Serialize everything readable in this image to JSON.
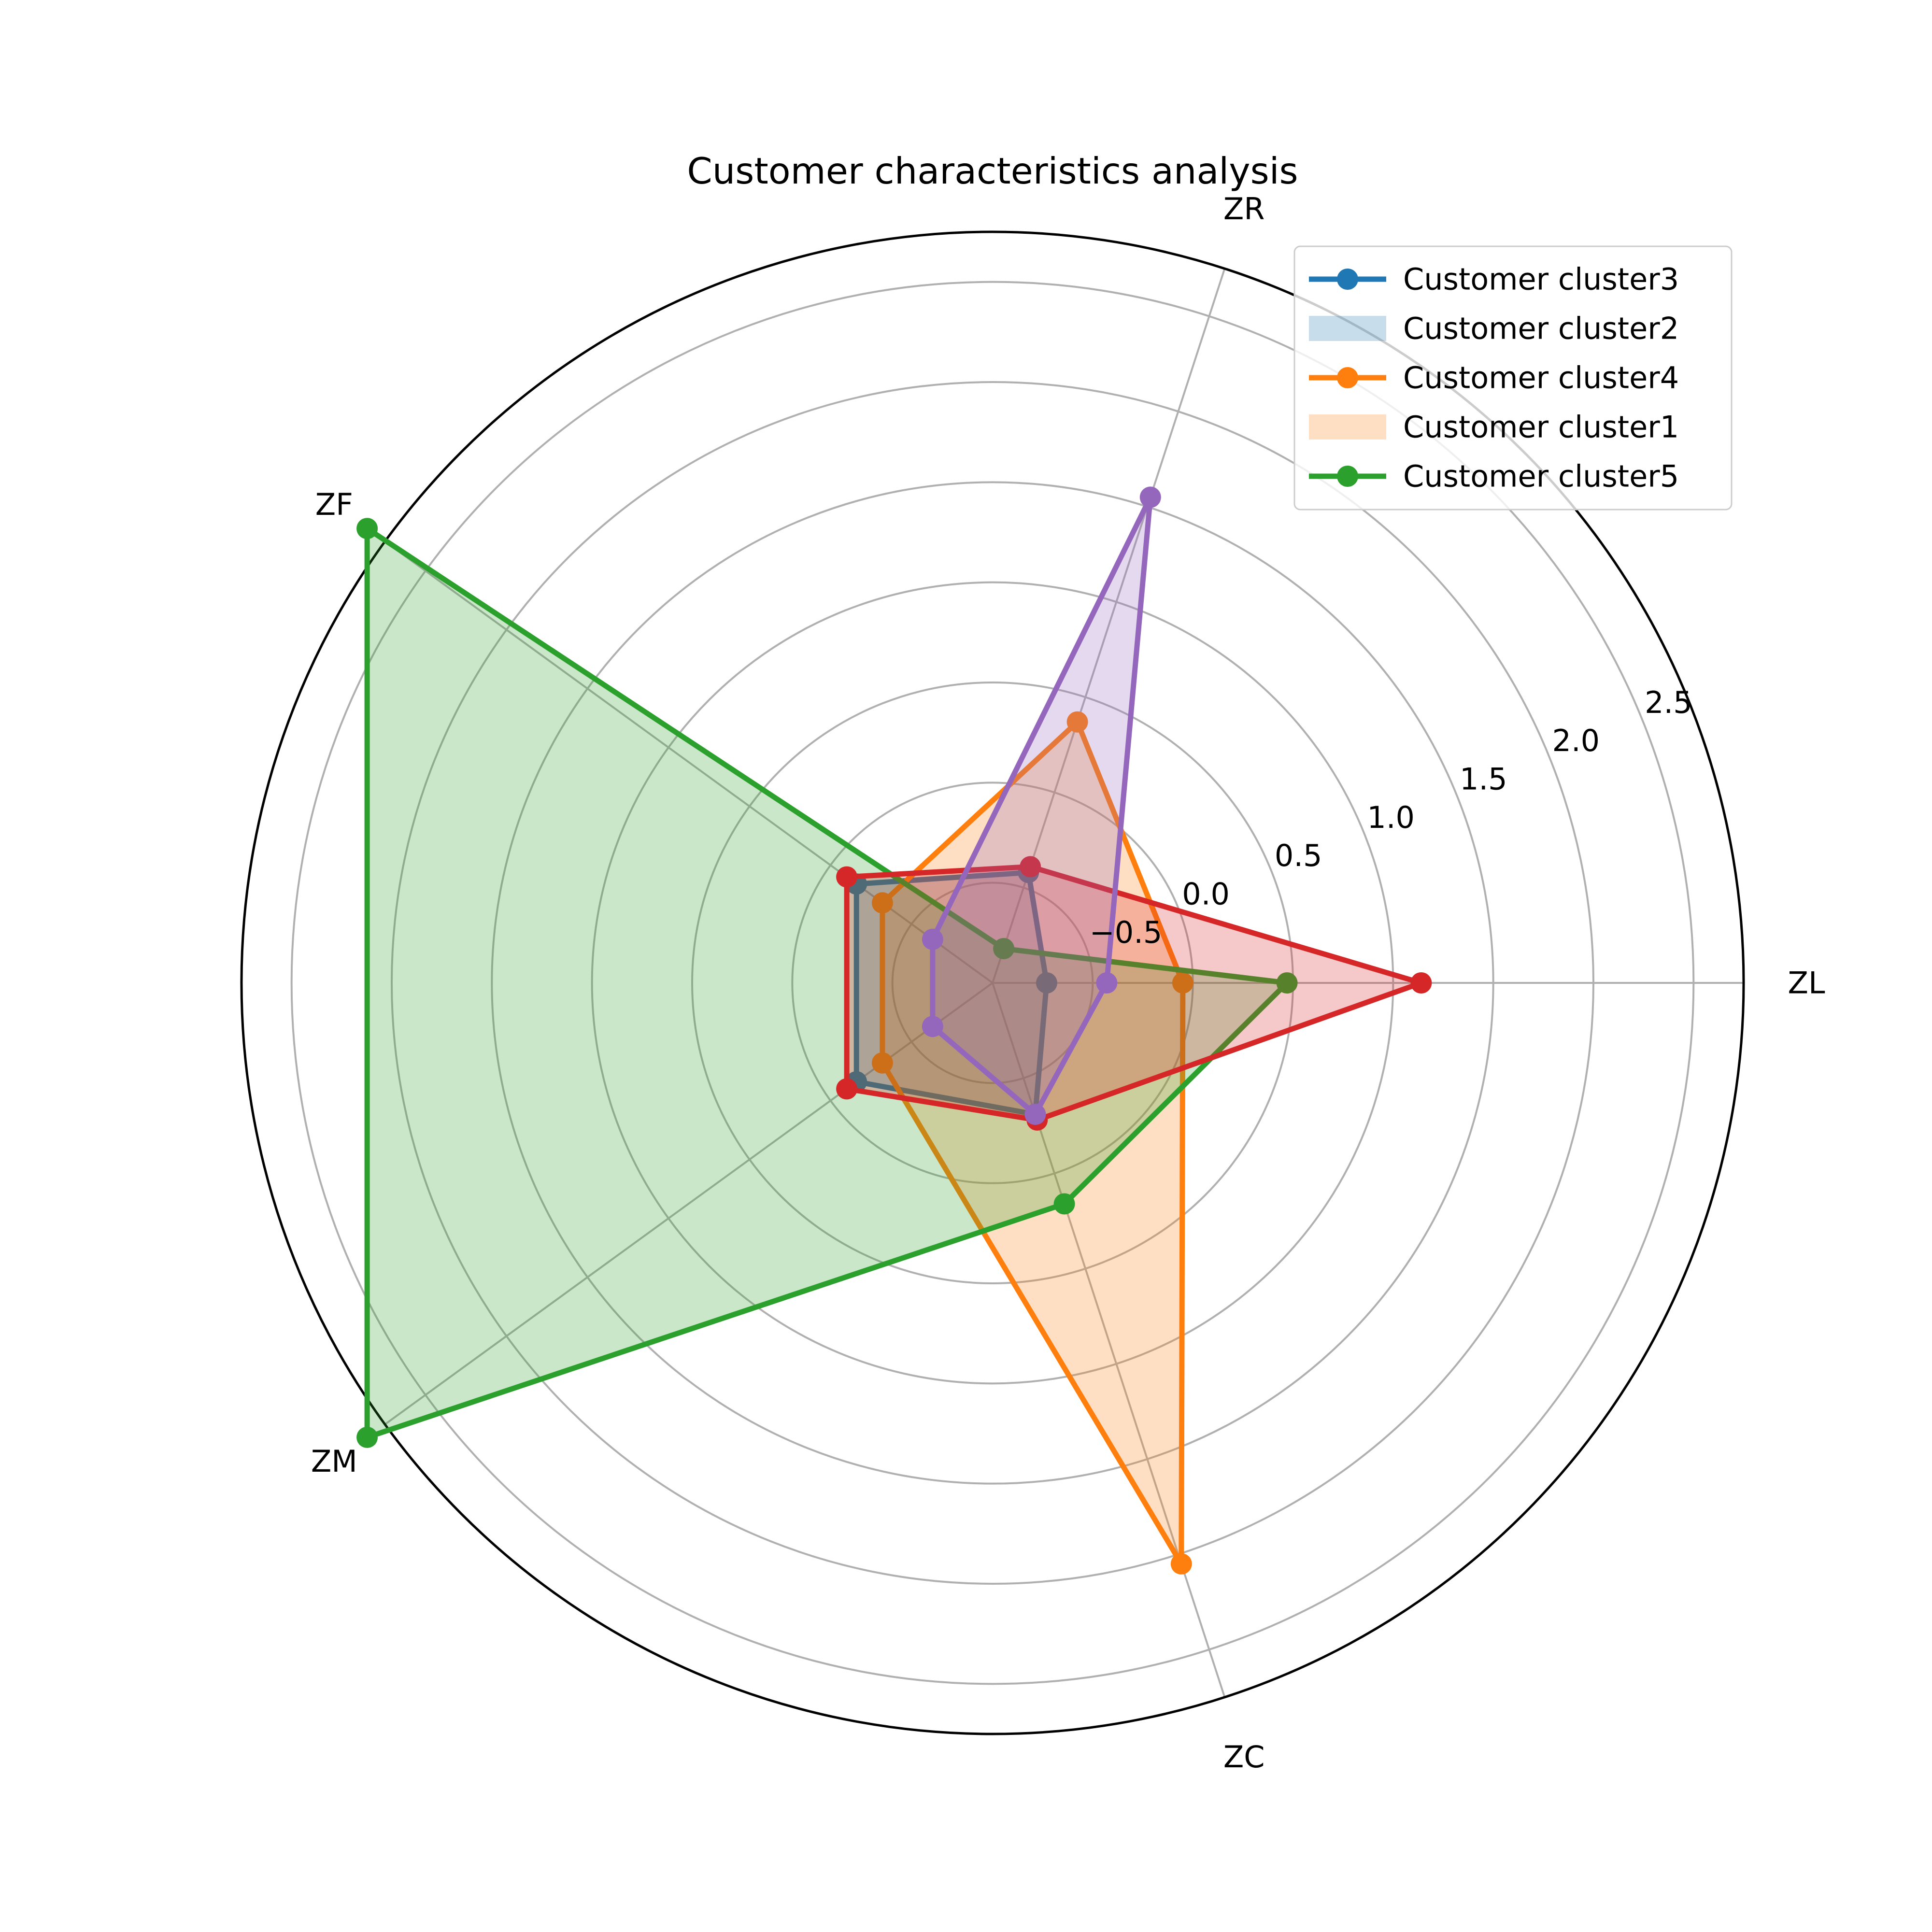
{
  "chart_data": {
    "type": "radar",
    "title": "Customer characteristics analysis",
    "axes": [
      "ZL",
      "ZR",
      "ZF",
      "ZM",
      "ZC"
    ],
    "r_range": [
      -1.0,
      2.75
    ],
    "r_ticks": [
      -0.5,
      0.0,
      0.5,
      1.0,
      1.5,
      2.0,
      2.5
    ],
    "r_tick_labels": [
      "−0.5",
      "0.0",
      "0.5",
      "1.0",
      "1.5",
      "2.0",
      "2.5"
    ],
    "grid": true,
    "legend_position": "top-right",
    "series": [
      {
        "color": "#1f77b4",
        "values": [
          -0.73,
          -0.42,
          -0.16,
          -0.16,
          -0.31
        ]
      },
      {
        "color": "#ff7f0e",
        "values": [
          -0.05,
          0.37,
          -0.32,
          -0.32,
          2.05
        ]
      },
      {
        "color": "#2ca02c",
        "values": [
          0.47,
          -0.82,
          2.86,
          2.86,
          0.16
        ]
      },
      {
        "color": "#d62728",
        "values": [
          1.14,
          -0.39,
          -0.1,
          -0.1,
          -0.28
        ]
      },
      {
        "color": "#9467bd",
        "values": [
          -0.43,
          1.55,
          -0.63,
          -0.63,
          -0.31
        ]
      }
    ],
    "legend": [
      {
        "label": "Customer cluster3",
        "kind": "line",
        "color": "#1f77b4"
      },
      {
        "label": "Customer cluster2",
        "kind": "patch",
        "color": "#1f77b4"
      },
      {
        "label": "Customer cluster4",
        "kind": "line",
        "color": "#ff7f0e"
      },
      {
        "label": "Customer cluster1",
        "kind": "patch",
        "color": "#ff7f0e"
      },
      {
        "label": "Customer cluster5",
        "kind": "line",
        "color": "#2ca02c"
      }
    ]
  }
}
